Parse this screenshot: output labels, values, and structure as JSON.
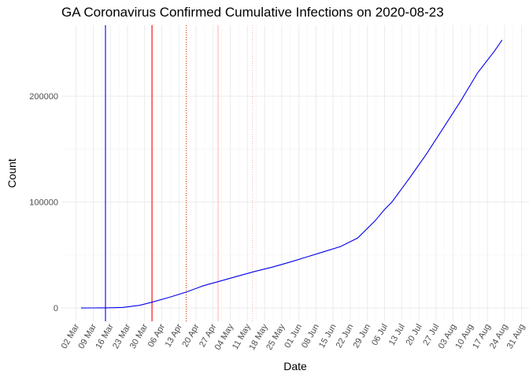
{
  "chart_data": {
    "type": "line",
    "title": "GA Coronavirus Confirmed Cumulative Infections on 2020-08-23",
    "x_label": "Date",
    "y_label": "Count",
    "x": [
      "03-04",
      "03-09",
      "03-14",
      "03-21",
      "03-28",
      "04-02",
      "04-09",
      "04-16",
      "04-23",
      "04-30",
      "05-07",
      "05-14",
      "05-21",
      "05-28",
      "06-04",
      "06-11",
      "06-18",
      "06-25",
      "07-02",
      "07-06",
      "07-09",
      "07-16",
      "07-23",
      "07-30",
      "08-06",
      "08-13",
      "08-20",
      "08-23"
    ],
    "values": [
      0,
      10,
      100,
      500,
      2500,
      5500,
      10000,
      15000,
      21000,
      25500,
      30000,
      34500,
      38500,
      43000,
      48000,
      53000,
      58000,
      66000,
      82000,
      93000,
      100000,
      122000,
      145000,
      170000,
      195000,
      222000,
      243000,
      253000
    ],
    "color": "#0000ee",
    "xlim": [
      "02-25",
      "09-03"
    ],
    "xticks": [
      {
        "value": "03-02",
        "label": "02 Mar"
      },
      {
        "value": "03-09",
        "label": "09 Mar"
      },
      {
        "value": "03-16",
        "label": "16 Mar"
      },
      {
        "value": "03-23",
        "label": "23 Mar"
      },
      {
        "value": "03-30",
        "label": "30 Mar"
      },
      {
        "value": "04-06",
        "label": "06 Apr"
      },
      {
        "value": "04-13",
        "label": "13 Apr"
      },
      {
        "value": "04-20",
        "label": "20 Apr"
      },
      {
        "value": "04-27",
        "label": "27 Apr"
      },
      {
        "value": "05-04",
        "label": "04 May"
      },
      {
        "value": "05-11",
        "label": "11 May"
      },
      {
        "value": "05-18",
        "label": "18 May"
      },
      {
        "value": "05-25",
        "label": "25 May"
      },
      {
        "value": "06-01",
        "label": "01 Jun"
      },
      {
        "value": "06-08",
        "label": "08 Jun"
      },
      {
        "value": "06-15",
        "label": "15 Jun"
      },
      {
        "value": "06-22",
        "label": "22 Jun"
      },
      {
        "value": "06-29",
        "label": "29 Jun"
      },
      {
        "value": "07-06",
        "label": "06 Jul"
      },
      {
        "value": "07-13",
        "label": "13 Jul"
      },
      {
        "value": "07-20",
        "label": "20 Jul"
      },
      {
        "value": "07-27",
        "label": "27 Jul"
      },
      {
        "value": "08-03",
        "label": "03 Aug"
      },
      {
        "value": "08-10",
        "label": "10 Aug"
      },
      {
        "value": "08-17",
        "label": "17 Aug"
      },
      {
        "value": "08-24",
        "label": "24 Aug"
      },
      {
        "value": "08-31",
        "label": "31 Aug"
      }
    ],
    "ylim": [
      -12600,
      267000
    ],
    "yticks": [
      0,
      100000,
      200000
    ],
    "grid": true,
    "vlines": [
      {
        "x": "03-14",
        "color": "#0000ff",
        "dash": "solid"
      },
      {
        "x": "04-02",
        "color": "#ff0000",
        "dash": "solid"
      },
      {
        "x": "04-16",
        "color": "#cc3300",
        "dash": "dotted"
      },
      {
        "x": "04-29",
        "color": "#ffb6b6",
        "dash": "solid"
      },
      {
        "x": "05-13",
        "color": "#ffb6b6",
        "dash": "dotted"
      }
    ]
  }
}
